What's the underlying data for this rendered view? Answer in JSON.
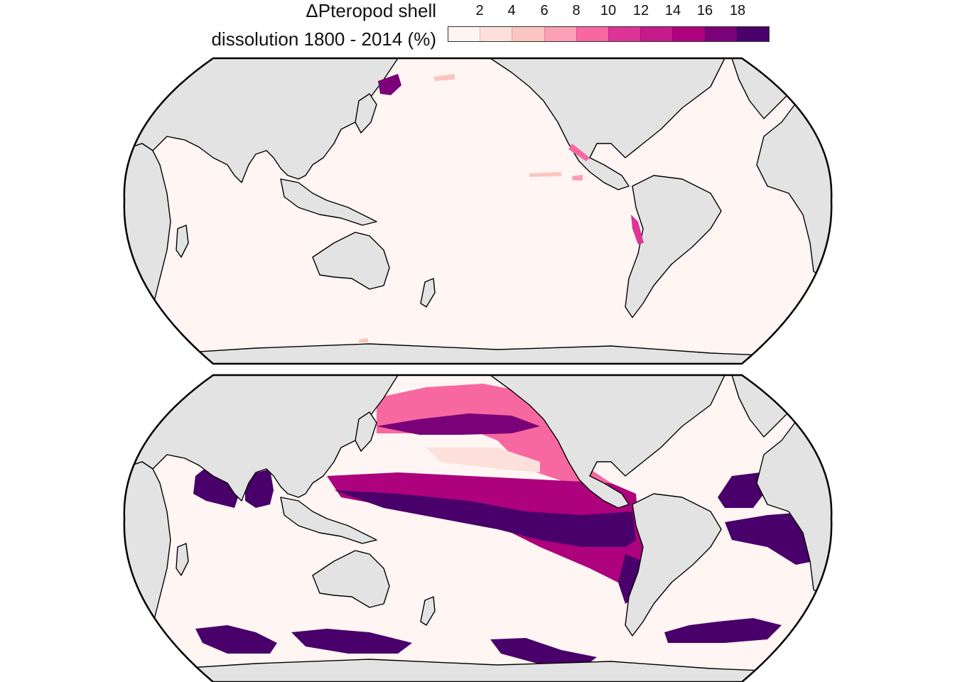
{
  "legend": {
    "title_line1": "ΔPteropod shell",
    "title_line2": "dissolution 1800 - 2014 (%)",
    "ticks": [
      "2",
      "4",
      "6",
      "8",
      "10",
      "12",
      "14",
      "16",
      "18"
    ],
    "colors": [
      "#fff5f0",
      "#fde0dc",
      "#fcc5c0",
      "#fa9fb5",
      "#f768a1",
      "#dd3497",
      "#c51b8a",
      "#ae017e",
      "#7a0177",
      "#49006a"
    ]
  },
  "colors": {
    "ocean_background": "#fff5f2",
    "land": "#e3e3e3",
    "coastline": "#000000"
  },
  "maps": [
    {
      "name": "top-map",
      "max_dissolution_level": "low"
    },
    {
      "name": "bottom-map",
      "max_dissolution_level": "high"
    }
  ]
}
